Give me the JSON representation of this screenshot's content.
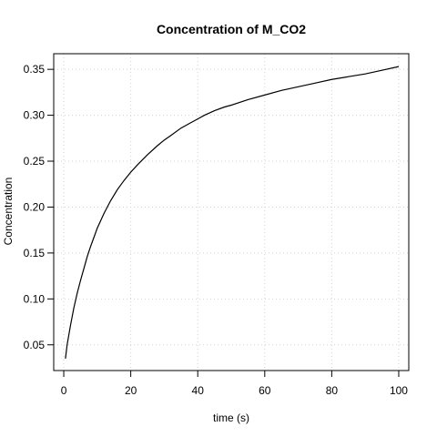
{
  "chart_data": {
    "type": "line",
    "title": "Concentration of M_CO2",
    "xlabel": "time (s)",
    "ylabel": "Concentration",
    "xlim": [
      -3,
      103
    ],
    "ylim": [
      0.022,
      0.367
    ],
    "grid": true,
    "x_ticks": [
      0,
      20,
      40,
      60,
      80,
      100
    ],
    "y_ticks": [
      0.05,
      0.1,
      0.15,
      0.2,
      0.25,
      0.3,
      0.35
    ],
    "x_tick_labels": [
      "0",
      "20",
      "40",
      "60",
      "80",
      "100"
    ],
    "y_tick_labels": [
      "0.05",
      "0.10",
      "0.15",
      "0.20",
      "0.25",
      "0.30",
      "0.35"
    ],
    "series": [
      {
        "color": "#000000",
        "x": [
          0.5,
          1,
          2,
          3,
          4,
          5,
          6,
          7,
          8,
          9,
          10,
          12,
          14,
          16,
          18,
          20,
          22,
          25,
          28,
          30,
          32,
          35,
          38,
          40,
          42,
          45,
          48,
          50,
          55,
          60,
          65,
          70,
          75,
          80,
          85,
          90,
          95,
          100
        ],
        "y": [
          0.035,
          0.05,
          0.071,
          0.09,
          0.106,
          0.12,
          0.133,
          0.146,
          0.157,
          0.167,
          0.177,
          0.193,
          0.207,
          0.219,
          0.229,
          0.238,
          0.246,
          0.257,
          0.267,
          0.273,
          0.278,
          0.286,
          0.292,
          0.296,
          0.3,
          0.305,
          0.309,
          0.311,
          0.317,
          0.322,
          0.327,
          0.331,
          0.335,
          0.339,
          0.342,
          0.345,
          0.349,
          0.353
        ]
      }
    ]
  }
}
